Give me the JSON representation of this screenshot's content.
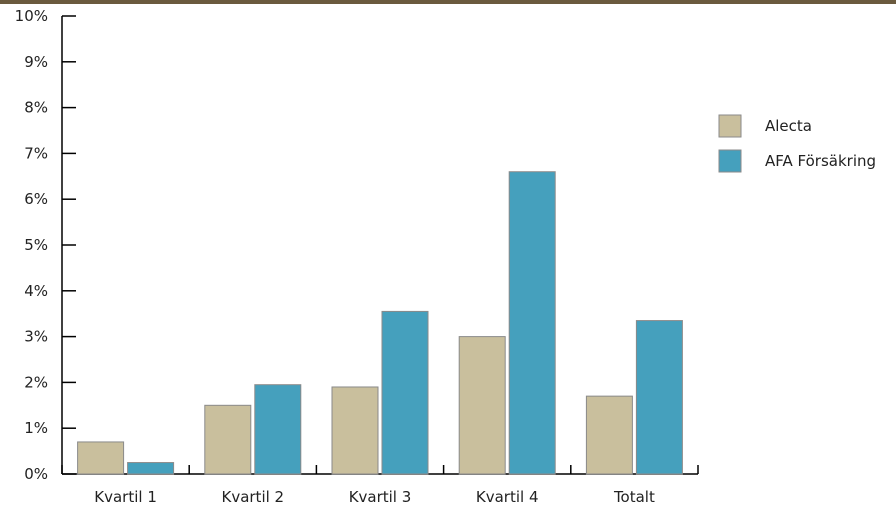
{
  "colors": {
    "top_rule": "#6b5a3e",
    "axis": "#000000",
    "bar_stroke": "#8a8a8a"
  },
  "chart_data": {
    "type": "bar",
    "title": "",
    "xlabel": "",
    "ylabel": "",
    "ylim": [
      0,
      10
    ],
    "y_ticks": [
      "0%",
      "1%",
      "2%",
      "3%",
      "4%",
      "5%",
      "6%",
      "7%",
      "8%",
      "9%",
      "10%"
    ],
    "grid": false,
    "legend_position": "right",
    "categories": [
      "Kvartil 1",
      "Kvartil 2",
      "Kvartil 3",
      "Kvartil 4",
      "Totalt"
    ],
    "series": [
      {
        "name": "Alecta",
        "color": "#c9bf9d",
        "values": [
          0.7,
          1.5,
          1.9,
          3.0,
          1.7
        ]
      },
      {
        "name": "AFA Försäkring",
        "color": "#45a0bd",
        "values": [
          0.25,
          1.95,
          3.55,
          6.6,
          3.35
        ]
      }
    ]
  }
}
